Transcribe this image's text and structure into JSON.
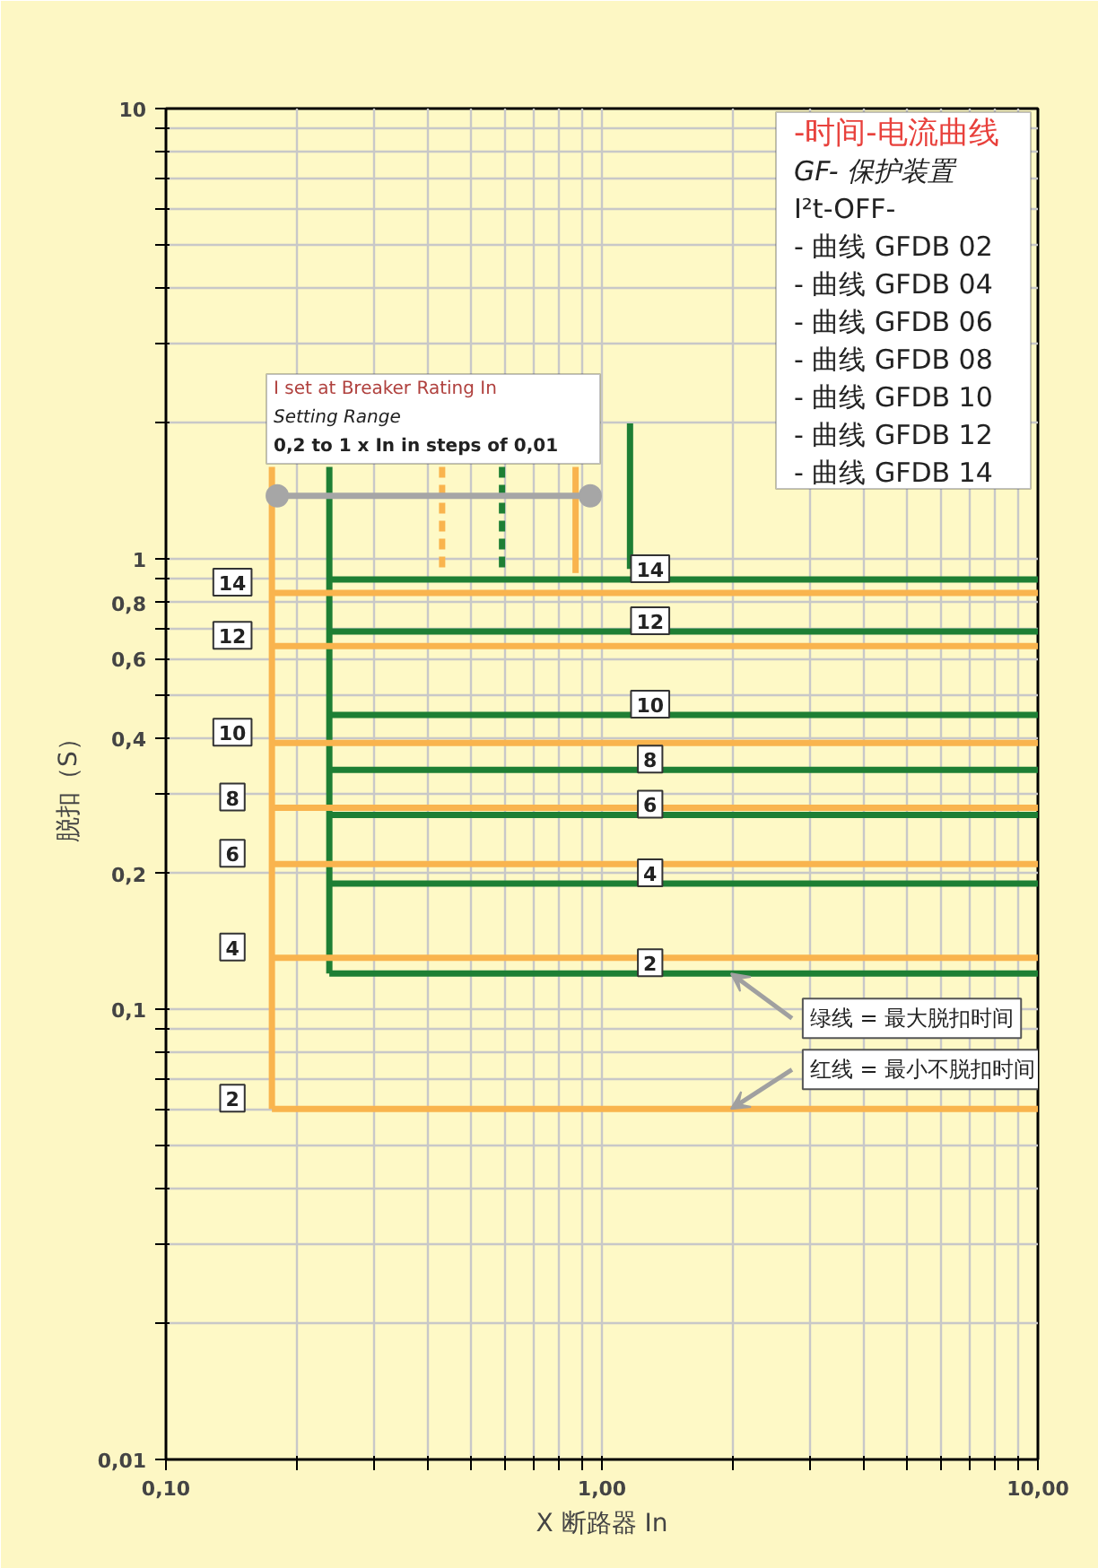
{
  "chart_data": {
    "type": "line",
    "title": "-时间-电流曲线",
    "subtitle": "GF- 保护装置",
    "xlabel": "X 断路器 In",
    "ylabel": "脱扣（S）",
    "log": "xy",
    "grid": true,
    "xlim": [
      0.1,
      10
    ],
    "ylim": [
      0.01,
      10
    ],
    "xticks": [
      {
        "value": 0.1,
        "label": "0,10"
      },
      {
        "value": 0.2,
        "label": null
      },
      {
        "value": 0.3,
        "label": null
      },
      {
        "value": 0.4,
        "label": null
      },
      {
        "value": 0.5,
        "label": null
      },
      {
        "value": 0.6,
        "label": null
      },
      {
        "value": 0.7,
        "label": null
      },
      {
        "value": 0.8,
        "label": null
      },
      {
        "value": 0.9,
        "label": null
      },
      {
        "value": 1,
        "label": "1,00"
      },
      {
        "value": 2,
        "label": null
      },
      {
        "value": 3,
        "label": null
      },
      {
        "value": 4,
        "label": null
      },
      {
        "value": 5,
        "label": null
      },
      {
        "value": 6,
        "label": null
      },
      {
        "value": 7,
        "label": null
      },
      {
        "value": 8,
        "label": null
      },
      {
        "value": 9,
        "label": null
      },
      {
        "value": 10,
        "label": "10,00"
      }
    ],
    "yticks": [
      {
        "value": 0.01,
        "label": "0,01"
      },
      {
        "value": 0.02,
        "label": null
      },
      {
        "value": 0.03,
        "label": null
      },
      {
        "value": 0.04,
        "label": null
      },
      {
        "value": 0.05,
        "label": null
      },
      {
        "value": 0.06,
        "label": null
      },
      {
        "value": 0.07,
        "label": null
      },
      {
        "value": 0.08,
        "label": null
      },
      {
        "value": 0.09,
        "label": null
      },
      {
        "value": 0.1,
        "label": "0,1"
      },
      {
        "value": 0.2,
        "label": "0,2"
      },
      {
        "value": 0.3,
        "label": null
      },
      {
        "value": 0.4,
        "label": "0,4"
      },
      {
        "value": 0.5,
        "label": null
      },
      {
        "value": 0.6,
        "label": "0,6"
      },
      {
        "value": 0.7,
        "label": null
      },
      {
        "value": 0.8,
        "label": "0,8"
      },
      {
        "value": 0.9,
        "label": null
      },
      1,
      {
        "value": 2,
        "label": null
      },
      {
        "value": 3,
        "label": null
      },
      {
        "value": 4,
        "label": null
      },
      {
        "value": 5,
        "label": null
      },
      {
        "value": 6,
        "label": null
      },
      {
        "value": 7,
        "label": null
      },
      {
        "value": 8,
        "label": null
      },
      {
        "value": 9,
        "label": null
      },
      10
    ],
    "series": [
      {
        "color": "#f9b44e",
        "x": [
          0.175,
          0.175
        ],
        "values": [
          1.6,
          0.06
        ]
      },
      {
        "color": "#1e7f34",
        "x": [
          0.237,
          0.237
        ],
        "values": [
          1.6,
          0.12
        ]
      },
      {
        "color": "#f9b44e",
        "x": [
          0.175,
          10
        ],
        "values": [
          0.84,
          0.84
        ]
      },
      {
        "color": "#f9b44e",
        "x": [
          0.175,
          10
        ],
        "values": [
          0.64,
          0.64
        ]
      },
      {
        "color": "#f9b44e",
        "x": [
          0.175,
          10
        ],
        "values": [
          0.39,
          0.39
        ]
      },
      {
        "color": "#f9b44e",
        "x": [
          0.175,
          10
        ],
        "values": [
          0.28,
          0.28
        ]
      },
      {
        "color": "#f9b44e",
        "x": [
          0.175,
          10
        ],
        "values": [
          0.21,
          0.21
        ]
      },
      {
        "color": "#f9b44e",
        "x": [
          0.175,
          10
        ],
        "values": [
          0.13,
          0.13
        ]
      },
      {
        "color": "#f9b44e",
        "x": [
          0.175,
          10
        ],
        "values": [
          0.06,
          0.06
        ]
      },
      {
        "color": "#1e7f34",
        "x": [
          0.237,
          10
        ],
        "values": [
          0.9,
          0.9
        ]
      },
      {
        "color": "#1e7f34",
        "x": [
          0.237,
          10
        ],
        "values": [
          0.69,
          0.69
        ]
      },
      {
        "color": "#1e7f34",
        "x": [
          0.237,
          10
        ],
        "values": [
          0.45,
          0.45
        ]
      },
      {
        "color": "#1e7f34",
        "x": [
          0.237,
          10
        ],
        "values": [
          0.34,
          0.34
        ]
      },
      {
        "color": "#1e7f34",
        "x": [
          0.237,
          10
        ],
        "values": [
          0.27,
          0.27
        ]
      },
      {
        "color": "#1e7f34",
        "x": [
          0.237,
          10
        ],
        "values": [
          0.19,
          0.19
        ]
      },
      {
        "color": "#1e7f34",
        "x": [
          0.237,
          10
        ],
        "values": [
          0.12,
          0.12
        ]
      },
      {
        "color": "#1e7f34",
        "x": [
          1.16,
          1.16
        ],
        "values": [
          2,
          0.95
        ]
      },
      {
        "color": "#f9b44e",
        "x": [
          0.43,
          0.43
        ],
        "values": [
          1.6,
          0.93
        ],
        "line_style": "dashed"
      },
      {
        "color": "#1e7f34",
        "x": [
          0.59,
          0.59
        ],
        "values": [
          1.6,
          0.93
        ],
        "line_style": "dashed"
      },
      {
        "color": "#f9b44e",
        "x": [
          0.87,
          0.87
        ],
        "values": [
          1.6,
          0.93
        ]
      },
      {
        "color": "#a6a6a6",
        "x": [
          0.18,
          0.94
        ],
        "values": [
          1.38,
          1.38
        ],
        "marker": "circle"
      }
    ],
    "annotations": [
      "I²t-OFF-",
      "- 曲线 GFDB 02",
      "- 曲线 GFDB 04",
      "- 曲线 GFDB 06",
      "- 曲线 GFDB 08",
      "- 曲线 GFDB 10",
      "- 曲线 GFDB 12",
      "- 曲线 GFDB 14",
      "I set at Breaker Rating In",
      "Setting Range",
      "0,2 to 1 x In in steps of 0,01",
      {
        "text": "14",
        "x": 0.175,
        "y": 0.84
      },
      {
        "text": "12",
        "x": 0.175,
        "y": 0.64
      },
      {
        "text": "10",
        "x": 0.175,
        "y": 0.39
      },
      {
        "text": "8",
        "x": 0.175,
        "y": 0.28
      },
      {
        "text": "6",
        "x": 0.175,
        "y": 0.21
      },
      {
        "text": "4",
        "x": 0.175,
        "y": 0.13
      },
      {
        "text": "2",
        "x": 0.175,
        "y": 0.06
      },
      {
        "text": "14",
        "x": 1.29,
        "y": 0.9
      },
      {
        "text": "12",
        "x": 1.29,
        "y": 0.69
      },
      {
        "text": "10",
        "x": 1.29,
        "y": 0.45
      },
      {
        "text": "8",
        "x": 1.29,
        "y": 0.34
      },
      {
        "text": "6",
        "x": 1.29,
        "y": 0.27
      },
      {
        "text": "4",
        "x": 1.29,
        "y": 0.19
      },
      {
        "text": "2",
        "x": 1.29,
        "y": 0.12
      },
      {
        "text": "绿线 = 最大脱扣时间",
        "x": 1.94,
        "y": 0.12
      },
      {
        "text": "红线 = 最小不脱扣时间",
        "x": 1.94,
        "y": 0.06
      }
    ]
  }
}
